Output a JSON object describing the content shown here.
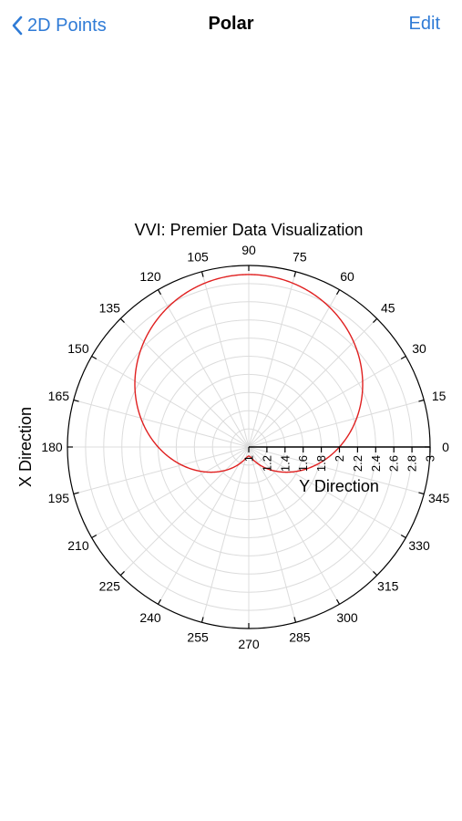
{
  "nav": {
    "back_label": "2D Points",
    "title": "Polar",
    "edit_label": "Edit"
  },
  "colors": {
    "accent": "#2f7bd6",
    "curve": "#e02020",
    "grid": "#dcdcdc"
  },
  "chart_data": {
    "type": "polar-line",
    "title": "VVI: Premier Data Visualization",
    "radial_axis_label": "Y Direction",
    "angular_axis_label": "X Direction",
    "angle_ticks": [
      0,
      15,
      30,
      45,
      60,
      75,
      90,
      105,
      120,
      135,
      150,
      165,
      180,
      195,
      210,
      225,
      240,
      255,
      270,
      285,
      300,
      315,
      330,
      345
    ],
    "radial_range": [
      1,
      3
    ],
    "radial_ticks": [
      "1",
      "1.2",
      "1.4",
      "1.6",
      "1.8",
      "2",
      "2.2",
      "2.4",
      "2.6",
      "2.8",
      "3"
    ],
    "series": [
      {
        "curve": "cardioid",
        "r_formula": "2 + 0.9*sin(theta)",
        "theta_range_deg": [
          0,
          360
        ],
        "r_at_0deg": 2.0,
        "r_at_90deg": 2.9,
        "r_at_180deg": 2.0,
        "r_at_270deg": 1.1,
        "color": "#e02020"
      }
    ],
    "grid": true
  }
}
